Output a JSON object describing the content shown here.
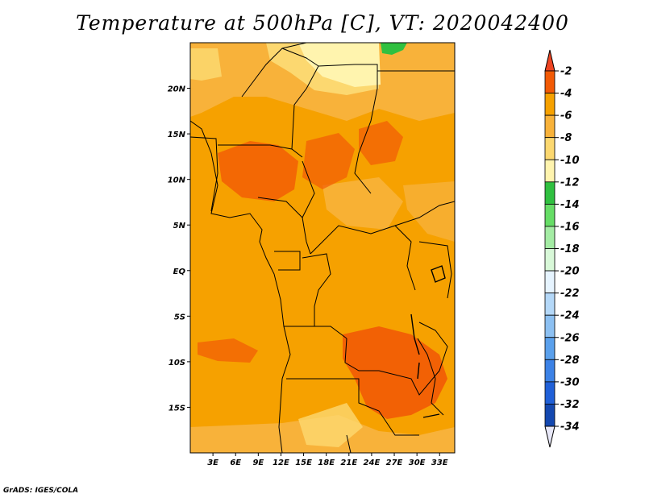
{
  "title": "Temperature at 500hPa [C], VT: 2020042400",
  "footer": "GrADS: IGES/COLA",
  "map": {
    "lon_range": [
      0,
      35
    ],
    "lat_range": [
      -20,
      25
    ],
    "lat_ticks": [
      {
        "value": 20,
        "label": "20N"
      },
      {
        "value": 15,
        "label": "15N"
      },
      {
        "value": 10,
        "label": "10N"
      },
      {
        "value": 5,
        "label": "5N"
      },
      {
        "value": 0,
        "label": "EQ"
      },
      {
        "value": -5,
        "label": "5S"
      },
      {
        "value": -10,
        "label": "10S"
      },
      {
        "value": -15,
        "label": "15S"
      }
    ],
    "lon_ticks": [
      {
        "value": 3,
        "label": "3E"
      },
      {
        "value": 6,
        "label": "6E"
      },
      {
        "value": 9,
        "label": "9E"
      },
      {
        "value": 12,
        "label": "12E"
      },
      {
        "value": 15,
        "label": "15E"
      },
      {
        "value": 18,
        "label": "18E"
      },
      {
        "value": 21,
        "label": "21E"
      },
      {
        "value": 24,
        "label": "24E"
      },
      {
        "value": 27,
        "label": "27E"
      },
      {
        "value": 30,
        "label": "30E"
      },
      {
        "value": 33,
        "label": "33E"
      }
    ]
  },
  "colorbar": {
    "top_color": "#ee4422",
    "bottom_color": "#e8e8f8",
    "bins": [
      {
        "label": "-2",
        "color": "#f25a05"
      },
      {
        "label": "-4",
        "color": "#f6a100"
      },
      {
        "label": "-6",
        "color": "#f8b23a"
      },
      {
        "label": "-8",
        "color": "#fcd870"
      },
      {
        "label": "-10",
        "color": "#fff4ae"
      },
      {
        "label": "-12",
        "color": "#30c040"
      },
      {
        "label": "-14",
        "color": "#66dd66"
      },
      {
        "label": "-16",
        "color": "#a4eca4"
      },
      {
        "label": "-18",
        "color": "#d8f8d8"
      },
      {
        "label": "-20",
        "color": "#e6f4ff"
      },
      {
        "label": "-22",
        "color": "#b4d8f8"
      },
      {
        "label": "-24",
        "color": "#8cc0f2"
      },
      {
        "label": "-26",
        "color": "#5aa0ec"
      },
      {
        "label": "-28",
        "color": "#3c82e6"
      },
      {
        "label": "-30",
        "color": "#2060d8"
      },
      {
        "label": "-32",
        "color": "#1448b0"
      },
      {
        "label": "-34",
        "color": "#0a1a78"
      }
    ]
  }
}
